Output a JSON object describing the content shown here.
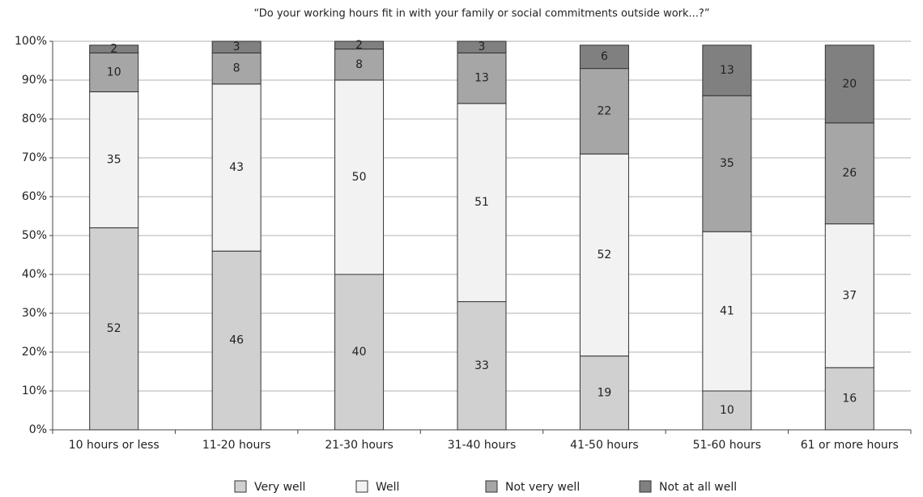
{
  "chart_data": {
    "type": "stacked_bar",
    "title": "“Do your working hours fit in with your family or social commitments outside work...?”",
    "categories": [
      "10 hours or less",
      "11-20 hours",
      "21-30 hours",
      "31-40 hours",
      "41-50 hours",
      "51-60 hours",
      "61 or more hours"
    ],
    "series": [
      {
        "name": "Very well",
        "color": "#d0d0d0",
        "values": [
          52,
          46,
          40,
          33,
          19,
          10,
          16
        ]
      },
      {
        "name": "Well",
        "color": "#f2f2f2",
        "values": [
          35,
          43,
          50,
          51,
          52,
          41,
          37
        ]
      },
      {
        "name": "Not very well",
        "color": "#a6a6a6",
        "values": [
          10,
          8,
          8,
          13,
          22,
          35,
          26
        ]
      },
      {
        "name": "Not at all well",
        "color": "#808080",
        "values": [
          2,
          3,
          2,
          3,
          6,
          13,
          20
        ]
      }
    ],
    "ylim": [
      0,
      100
    ],
    "yticks": [
      {
        "value": 0,
        "label": "0%"
      },
      {
        "value": 10,
        "label": "10%"
      },
      {
        "value": 20,
        "label": "20%"
      },
      {
        "value": 30,
        "label": "30%"
      },
      {
        "value": 40,
        "label": "40%"
      },
      {
        "value": 50,
        "label": "50%"
      },
      {
        "value": 60,
        "label": "60%"
      },
      {
        "value": 70,
        "label": "70%"
      },
      {
        "value": 80,
        "label": "80%"
      },
      {
        "value": 90,
        "label": "90%"
      },
      {
        "value": 100,
        "label": "100%"
      }
    ],
    "grid": true,
    "legend": "bottom"
  }
}
